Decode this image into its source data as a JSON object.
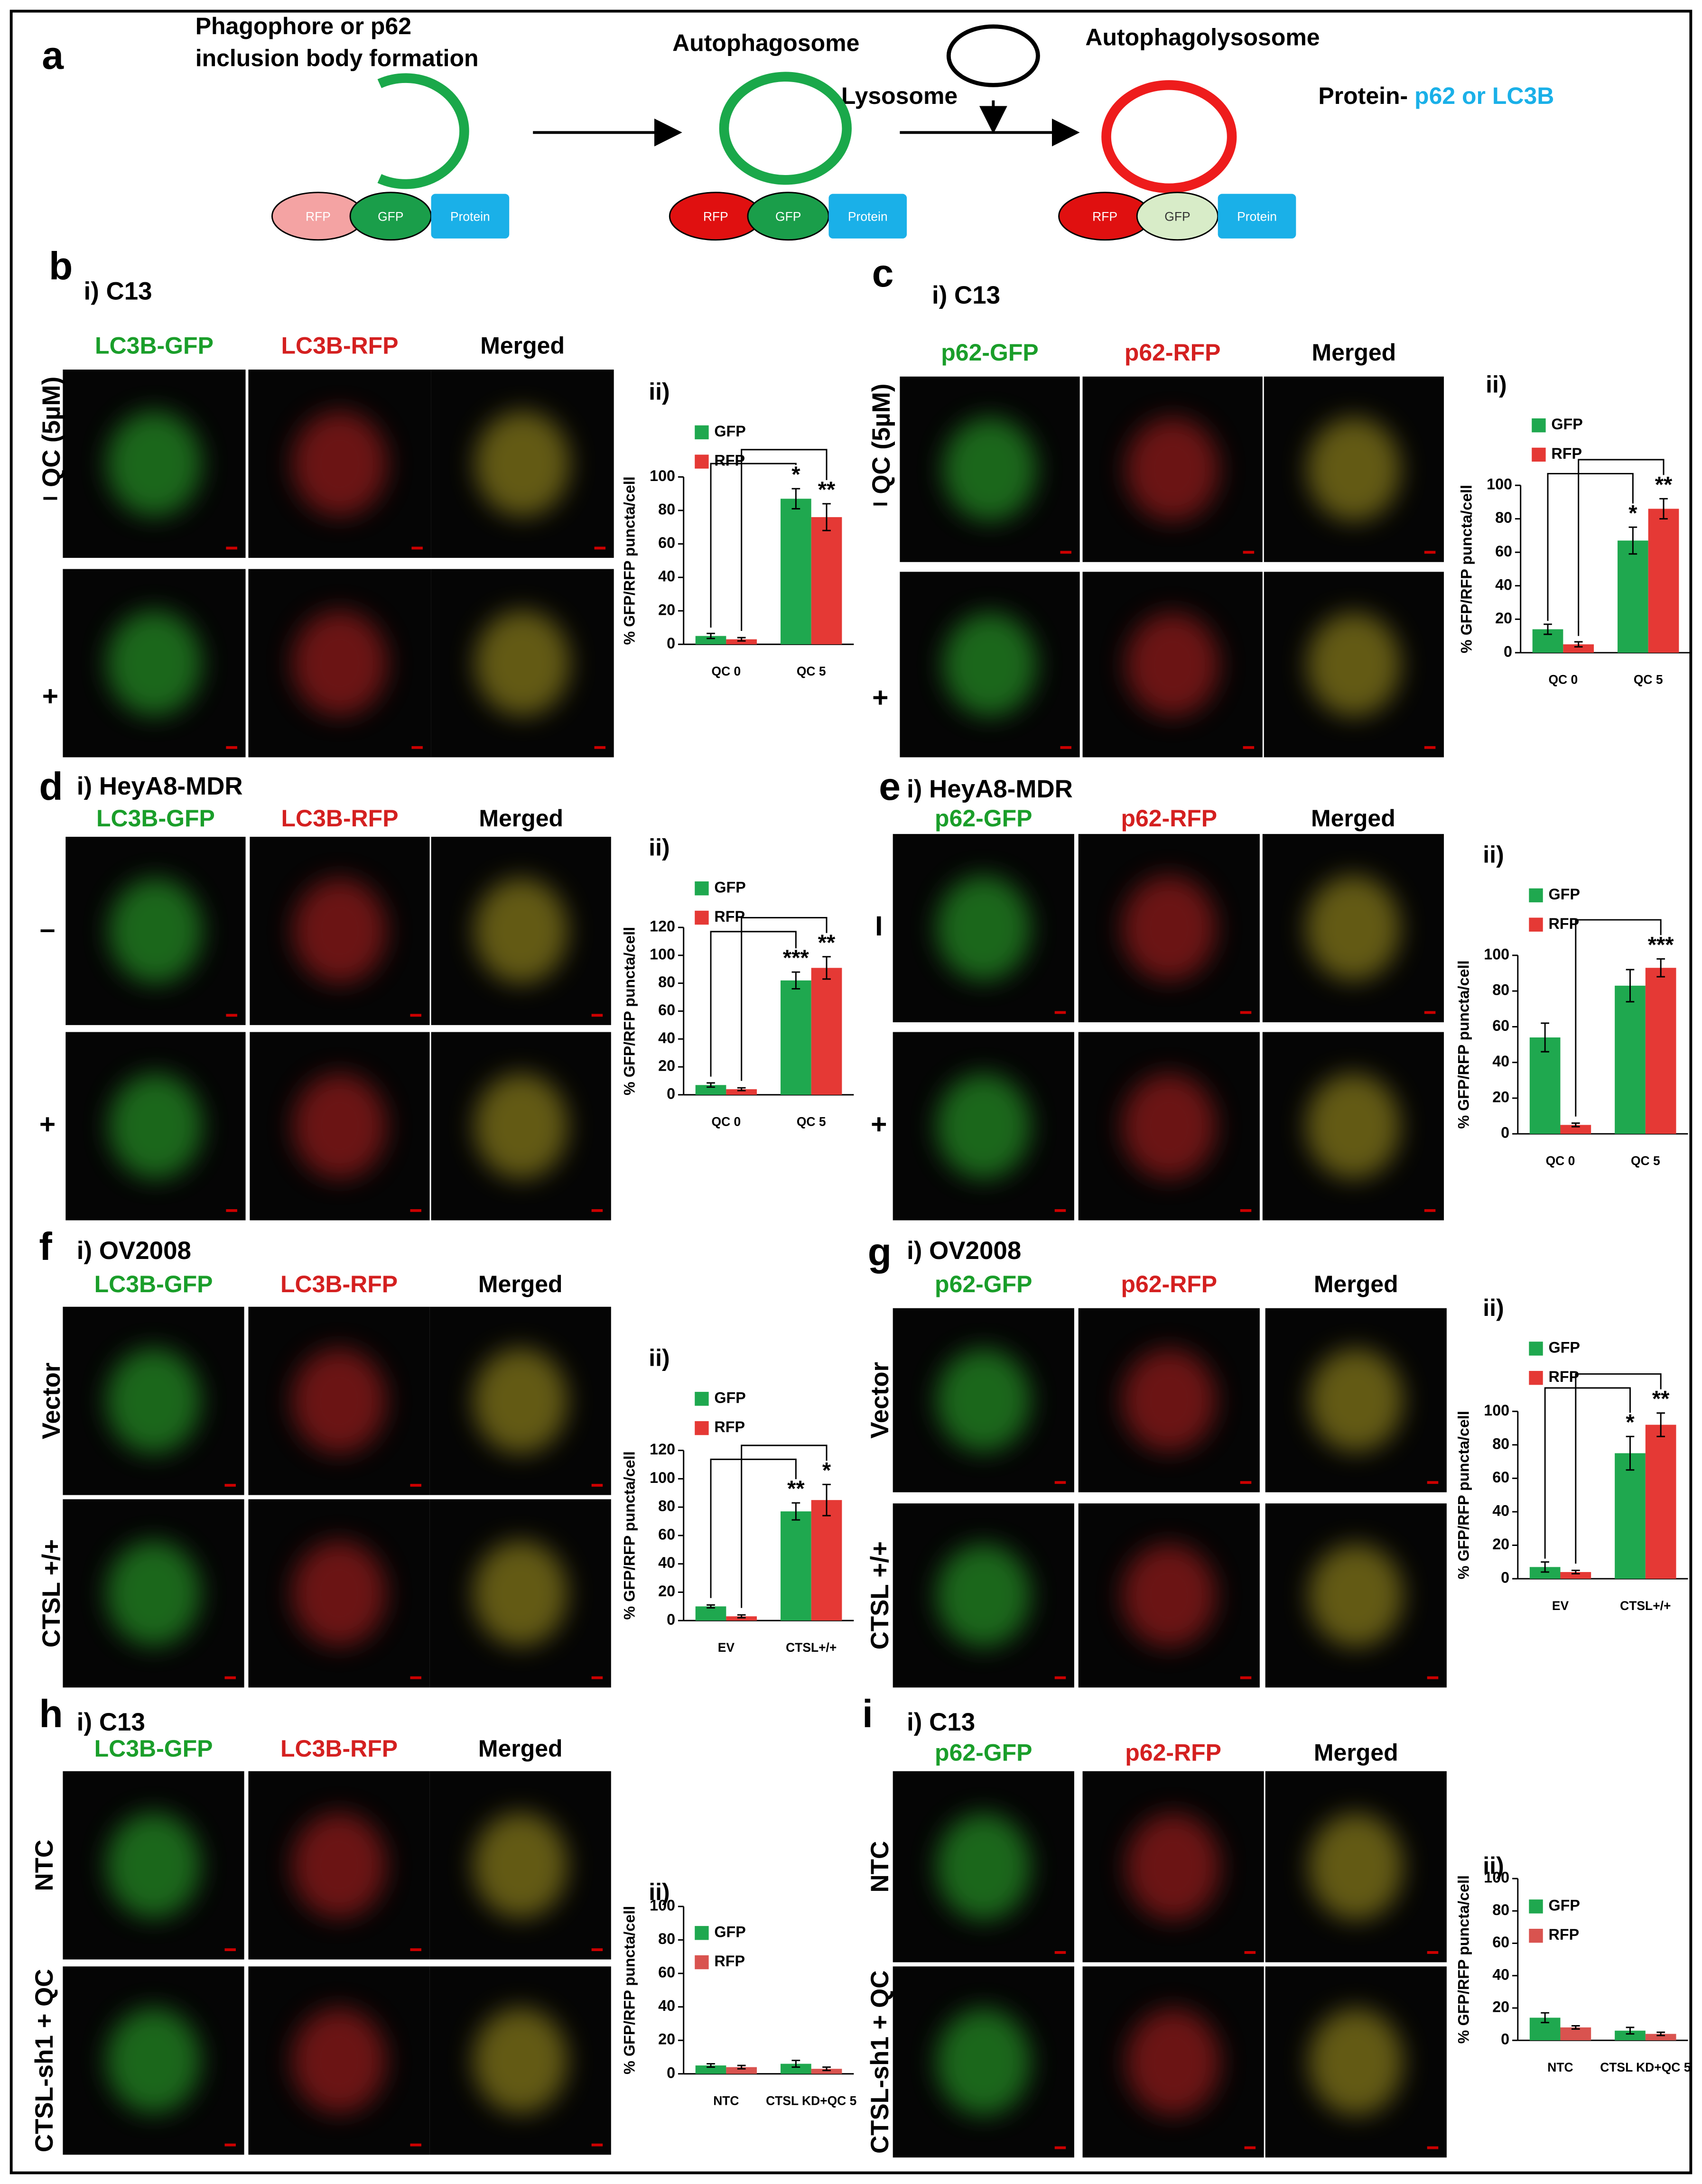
{
  "figure_a": {
    "label": "a",
    "step_1": [
      "Phagophore or p62",
      "inclusion body formation"
    ],
    "step_2": "Autophagosome",
    "lysosome": "Lysosome",
    "step_3": "Autophagolysosome",
    "protein_label": "Protein-",
    "protein_names": "p62 or LC3B",
    "fusion_parts": [
      "RFP",
      "GFP",
      "Protein"
    ]
  },
  "panels": [
    {
      "label": "b",
      "cell_line": "i) C13",
      "channels": [
        "LC3B-GFP",
        "LC3B-RFP",
        "Merged"
      ],
      "row_title": "QC (5µM)",
      "rows": [
        "–",
        "+"
      ]
    },
    {
      "label": "c",
      "cell_line": "i) C13",
      "channels": [
        "p62-GFP",
        "p62-RFP",
        "Merged"
      ],
      "row_title": "QC (5µM)",
      "rows": [
        "–",
        "+"
      ]
    },
    {
      "label": "d",
      "cell_line": "i) HeyA8-MDR",
      "channels": [
        "LC3B-GFP",
        "LC3B-RFP",
        "Merged"
      ],
      "rows": [
        "–",
        "+"
      ]
    },
    {
      "label": "e",
      "cell_line": "i) HeyA8-MDR",
      "channels": [
        "p62-GFP",
        "p62-RFP",
        "Merged"
      ],
      "rows": [
        "I",
        "+"
      ]
    },
    {
      "label": "f",
      "cell_line": "i) OV2008",
      "channels": [
        "LC3B-GFP",
        "LC3B-RFP",
        "Merged"
      ],
      "rows": [
        "Vector",
        "CTSL +/+"
      ]
    },
    {
      "label": "g",
      "cell_line": "i) OV2008",
      "channels": [
        "p62-GFP",
        "p62-RFP",
        "Merged"
      ],
      "rows": [
        "Vector",
        "CTSL +/+"
      ]
    },
    {
      "label": "h",
      "cell_line": "i) C13",
      "channels": [
        "LC3B-GFP",
        "LC3B-RFP",
        "Merged"
      ],
      "rows": [
        "NTC",
        "CTSL-sh1 + QC"
      ]
    },
    {
      "label": "i",
      "cell_line": "i) C13",
      "channels": [
        "p62-GFP",
        "p62-RFP",
        "Merged"
      ],
      "rows": [
        "NTC",
        "CTSL-sh1 + QC"
      ]
    }
  ],
  "chart_data": [
    {
      "type": "bar",
      "title": "ii)",
      "y_label": "% GFP/RFP puncta/cell",
      "categories": [
        "QC 0",
        "QC 5"
      ],
      "ylim": [
        0,
        100
      ],
      "yticks": [
        0,
        20,
        40,
        60,
        80,
        100
      ],
      "series": [
        {
          "name": "GFP",
          "color": "#1fa84f",
          "values": [
            5,
            87
          ],
          "errors": [
            1.5,
            6
          ],
          "significance": [
            null,
            "*"
          ]
        },
        {
          "name": "RFP",
          "color": "#e53935",
          "values": [
            3,
            76
          ],
          "errors": [
            1,
            8
          ],
          "significance": [
            null,
            "**"
          ]
        }
      ]
    },
    {
      "type": "bar",
      "title": "ii)",
      "y_label": "% GFP/RFP puncta/cell",
      "categories": [
        "QC 0",
        "QC 5"
      ],
      "ylim": [
        0,
        100
      ],
      "yticks": [
        0,
        20,
        40,
        60,
        80,
        100
      ],
      "series": [
        {
          "name": "GFP",
          "color": "#1fa84f",
          "values": [
            14,
            67
          ],
          "errors": [
            3,
            8
          ],
          "significance": [
            null,
            "*"
          ]
        },
        {
          "name": "RFP",
          "color": "#e53935",
          "values": [
            5,
            86
          ],
          "errors": [
            1.5,
            6
          ],
          "significance": [
            null,
            "**"
          ]
        }
      ]
    },
    {
      "type": "bar",
      "title": "ii)",
      "y_label": "% GFP/RFP puncta/cell",
      "categories": [
        "QC 0",
        "QC 5"
      ],
      "ylim": [
        0,
        120
      ],
      "yticks": [
        0,
        20,
        40,
        60,
        80,
        100,
        120
      ],
      "series": [
        {
          "name": "GFP",
          "color": "#1fa84f",
          "values": [
            7,
            82
          ],
          "errors": [
            1.5,
            6
          ],
          "significance": [
            null,
            "***"
          ]
        },
        {
          "name": "RFP",
          "color": "#e53935",
          "values": [
            4,
            91
          ],
          "errors": [
            1,
            8
          ],
          "significance": [
            null,
            "**"
          ]
        }
      ]
    },
    {
      "type": "bar",
      "title": "ii)",
      "y_label": "% GFP/RFP puncta/cell",
      "categories": [
        "QC 0",
        "QC 5"
      ],
      "ylim": [
        0,
        100
      ],
      "yticks": [
        0,
        20,
        40,
        60,
        80,
        100
      ],
      "series": [
        {
          "name": "GFP",
          "color": "#1fa84f",
          "values": [
            54,
            83
          ],
          "errors": [
            8,
            9
          ],
          "significance": [
            null,
            null
          ]
        },
        {
          "name": "RFP",
          "color": "#e53935",
          "values": [
            5,
            93
          ],
          "errors": [
            1,
            5
          ],
          "significance": [
            null,
            "***"
          ]
        }
      ]
    },
    {
      "type": "bar",
      "title": "ii)",
      "y_label": "% GFP/RFP puncta/cell",
      "categories": [
        "EV",
        "CTSL+/+"
      ],
      "ylim": [
        0,
        120
      ],
      "yticks": [
        0,
        20,
        40,
        60,
        80,
        100,
        120
      ],
      "series": [
        {
          "name": "GFP",
          "color": "#1fa84f",
          "values": [
            10,
            77
          ],
          "errors": [
            1,
            6
          ],
          "significance": [
            null,
            "**"
          ]
        },
        {
          "name": "RFP",
          "color": "#e53935",
          "values": [
            3,
            85
          ],
          "errors": [
            1,
            11
          ],
          "significance": [
            null,
            "*"
          ]
        }
      ]
    },
    {
      "type": "bar",
      "title": "ii)",
      "y_label": "% GFP/RFP puncta/cell",
      "categories": [
        "EV",
        "CTSL+/+"
      ],
      "ylim": [
        0,
        100
      ],
      "yticks": [
        0,
        20,
        40,
        60,
        80,
        100
      ],
      "series": [
        {
          "name": "GFP",
          "color": "#1fa84f",
          "values": [
            7,
            75
          ],
          "errors": [
            3,
            10
          ],
          "significance": [
            null,
            "*"
          ]
        },
        {
          "name": "RFP",
          "color": "#e53935",
          "values": [
            4,
            92
          ],
          "errors": [
            1,
            7
          ],
          "significance": [
            null,
            "**"
          ]
        }
      ]
    },
    {
      "type": "bar",
      "title": "ii)",
      "y_label": "% GFP/RFP puncta/cell",
      "categories": [
        "NTC",
        "CTSL KD+QC 5"
      ],
      "ylim": [
        0,
        100
      ],
      "yticks": [
        0,
        20,
        40,
        60,
        80,
        100
      ],
      "series": [
        {
          "name": "GFP",
          "color": "#1fa84f",
          "values": [
            5,
            6
          ],
          "errors": [
            1,
            2
          ]
        },
        {
          "name": "RFP",
          "color": "#d9534f",
          "values": [
            4,
            3
          ],
          "errors": [
            1,
            1
          ]
        }
      ]
    },
    {
      "type": "bar",
      "title": "ii)",
      "y_label": "% GFP/RFP puncta/cell",
      "categories": [
        "NTC",
        "CTSL KD+QC 5"
      ],
      "ylim": [
        0,
        100
      ],
      "yticks": [
        0,
        20,
        40,
        60,
        80,
        100
      ],
      "series": [
        {
          "name": "GFP",
          "color": "#1fa84f",
          "values": [
            14,
            6
          ],
          "errors": [
            3,
            2
          ]
        },
        {
          "name": "RFP",
          "color": "#d9534f",
          "values": [
            8,
            4
          ],
          "errors": [
            1,
            1
          ]
        }
      ]
    }
  ]
}
